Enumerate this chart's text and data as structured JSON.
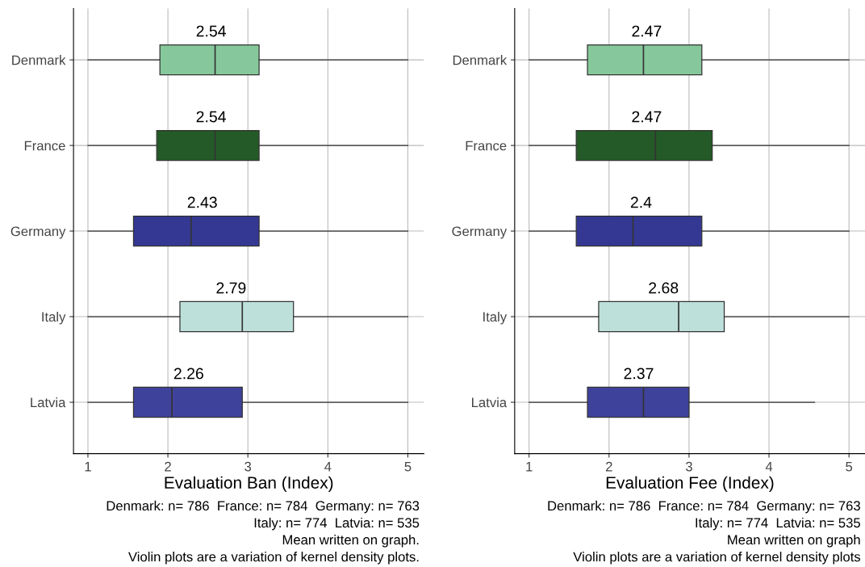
{
  "chart_data": [
    {
      "type": "box",
      "orientation": "horizontal",
      "xlabel": "Evaluation Ban (Index)",
      "categories": [
        "Denmark",
        "France",
        "Germany",
        "Italy",
        "Latvia"
      ],
      "colors": [
        "#86c89b",
        "#245a27",
        "#343892",
        "#bde0da",
        "#3f429a"
      ],
      "boxes": [
        {
          "low": 1,
          "q1": 1.9,
          "median": 2.59,
          "q3": 3.14,
          "high": 5
        },
        {
          "low": 1,
          "q1": 1.86,
          "median": 2.59,
          "q3": 3.14,
          "high": 5
        },
        {
          "low": 1,
          "q1": 1.57,
          "median": 2.29,
          "q3": 3.14,
          "high": 5
        },
        {
          "low": 1,
          "q1": 2.15,
          "median": 2.93,
          "q3": 3.57,
          "high": 5
        },
        {
          "low": 1,
          "q1": 1.57,
          "median": 2.05,
          "q3": 2.93,
          "high": 5
        }
      ],
      "xlim": [
        0.82,
        5.2
      ],
      "xticks": [
        1,
        2,
        3,
        4,
        5
      ],
      "grid": true,
      "annotations": [
        "2.54",
        "2.54",
        "2.43",
        "2.79",
        "2.26",
        "Denmark: n= 786  France: n= 784  Germany: n= 763",
        "Italy: n= 774  Latvia: n= 535",
        "Mean written on graph.",
        "Violin plots are a variation of kernel density plots."
      ]
    },
    {
      "type": "box",
      "orientation": "horizontal",
      "xlabel": "Evaluation Fee (Index)",
      "categories": [
        "Denmark",
        "France",
        "Germany",
        "Italy",
        "Latvia"
      ],
      "colors": [
        "#86c89b",
        "#245a27",
        "#343892",
        "#bde0da",
        "#3f429a"
      ],
      "boxes": [
        {
          "low": 1,
          "q1": 1.73,
          "median": 2.43,
          "q3": 3.16,
          "high": 5
        },
        {
          "low": 1,
          "q1": 1.59,
          "median": 2.58,
          "q3": 3.29,
          "high": 5
        },
        {
          "low": 1,
          "q1": 1.59,
          "median": 2.3,
          "q3": 3.16,
          "high": 5
        },
        {
          "low": 1,
          "q1": 1.87,
          "median": 2.87,
          "q3": 3.44,
          "high": 5
        },
        {
          "low": 1,
          "q1": 1.73,
          "median": 2.43,
          "q3": 3.0,
          "high": 4.57
        }
      ],
      "xlim": [
        0.82,
        5.2
      ],
      "xticks": [
        1,
        2,
        3,
        4,
        5
      ],
      "grid": true,
      "annotations": [
        "2.47",
        "2.47",
        "2.4",
        "2.68",
        "2.37",
        "Denmark: n= 786  France: n= 784  Germany: n= 763",
        "Italy: n= 774  Latvia: n= 535",
        "Mean written on graph",
        "Violin plots are a variation of kernel density plots"
      ]
    }
  ]
}
